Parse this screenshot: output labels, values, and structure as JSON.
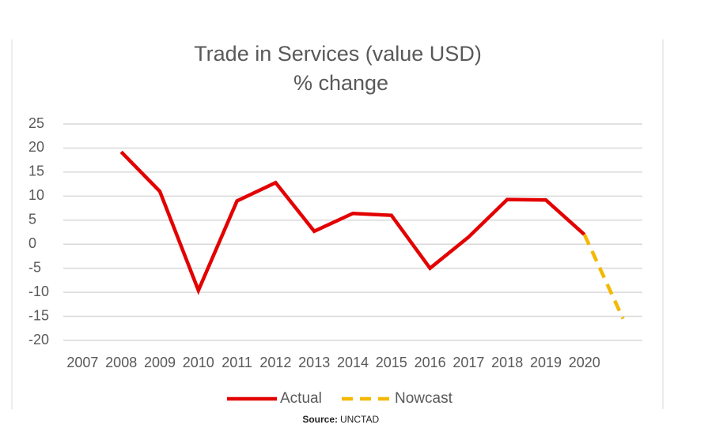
{
  "chart_data": {
    "type": "line",
    "title": "Trade in Services (value USD)",
    "subtitle": "% change",
    "categories": [
      "2007",
      "2008",
      "2009",
      "2010",
      "2011",
      "2012",
      "2013",
      "2014",
      "2015",
      "2016",
      "2017",
      "2018",
      "2019",
      "2020",
      null
    ],
    "series": [
      {
        "name": "Actual",
        "color": "#e30000",
        "style": "solid",
        "values": [
          null,
          19.2,
          11,
          -9.6,
          9,
          12.8,
          2.7,
          6.4,
          6,
          -5,
          1.5,
          9.3,
          9.2,
          2,
          null
        ]
      },
      {
        "name": "Nowcast",
        "color": "#f5b800",
        "style": "dashed",
        "values": [
          null,
          null,
          null,
          null,
          null,
          null,
          null,
          null,
          null,
          null,
          null,
          null,
          null,
          2,
          -15.5
        ]
      }
    ],
    "ylim": [
      -20,
      25
    ],
    "yticks": [
      -20,
      -15,
      -10,
      -5,
      0,
      5,
      10,
      15,
      20,
      25
    ],
    "grid": true,
    "legend": "bottom"
  },
  "footer": {
    "label": "Source:",
    "text": "UNCTAD"
  }
}
